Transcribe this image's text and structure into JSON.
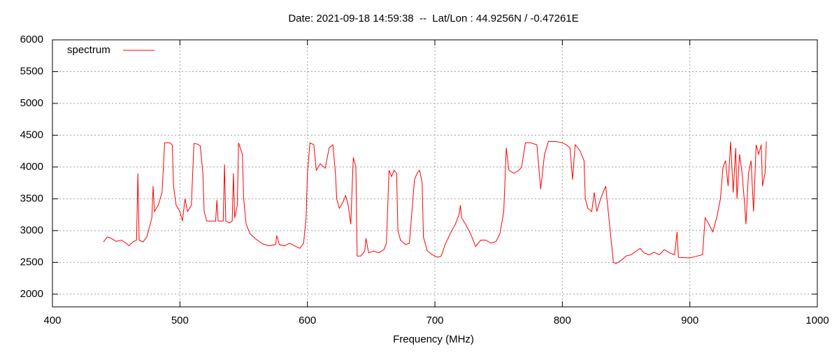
{
  "chart_data": {
    "type": "line",
    "title": "Date: 2021-09-18 14:59:38  --  Lat/Lon : 44.9256N / -0.47261E",
    "x_label": "Frequency (MHz)",
    "x": [
      440,
      443,
      446,
      450,
      454,
      458,
      460,
      463,
      466,
      467,
      468,
      471,
      474,
      476,
      478,
      479,
      480,
      483,
      486,
      488,
      492,
      494,
      495,
      497,
      500,
      502,
      504,
      506,
      509,
      511,
      514,
      516,
      518,
      519,
      521,
      525,
      528,
      529,
      530,
      534,
      535,
      536,
      539,
      541,
      542,
      543,
      545,
      546,
      549,
      550,
      552,
      555,
      560,
      565,
      570,
      575,
      576,
      578,
      582,
      586,
      590,
      594,
      597,
      599,
      600,
      602,
      605,
      607,
      610,
      614,
      617,
      620,
      622,
      623,
      625,
      628,
      630,
      632,
      634,
      636,
      638,
      639,
      642,
      645,
      646,
      648,
      652,
      656,
      660,
      662,
      664,
      666,
      668,
      670,
      671,
      673,
      677,
      680,
      682,
      684,
      686,
      688,
      690,
      691,
      694,
      698,
      702,
      705,
      708,
      712,
      716,
      719,
      720,
      721,
      724,
      728,
      732,
      736,
      740,
      744,
      748,
      751,
      754,
      756,
      758,
      762,
      766,
      768,
      771,
      775,
      780,
      783,
      786,
      789,
      795,
      800,
      803,
      806,
      808,
      810,
      814,
      817,
      818,
      820,
      823,
      825,
      827,
      830,
      834,
      836,
      840,
      842,
      846,
      850,
      854,
      858,
      861,
      864,
      868,
      872,
      876,
      880,
      884,
      888,
      890,
      891,
      900,
      906,
      910,
      912,
      915,
      918,
      921,
      924,
      926,
      928,
      930,
      932,
      934,
      936,
      937,
      939,
      941,
      943,
      944,
      946,
      948,
      950,
      952,
      954,
      956,
      957,
      959,
      960
    ],
    "series": [
      {
        "name": "spectrum",
        "color": "#ff0000",
        "values": [
          2820,
          2900,
          2880,
          2830,
          2850,
          2800,
          2760,
          2820,
          2850,
          3900,
          2850,
          2820,
          2900,
          3050,
          3200,
          3700,
          3300,
          3400,
          3600,
          4380,
          4380,
          4350,
          3700,
          3400,
          3300,
          3150,
          3500,
          3300,
          3400,
          4370,
          4360,
          4330,
          3900,
          3300,
          3150,
          3150,
          3150,
          3480,
          3150,
          3150,
          4040,
          3150,
          3120,
          3150,
          3900,
          3200,
          3400,
          4380,
          4200,
          3500,
          3100,
          2950,
          2860,
          2790,
          2760,
          2780,
          2920,
          2780,
          2760,
          2800,
          2760,
          2720,
          2800,
          3200,
          3900,
          4380,
          4350,
          3950,
          4050,
          3980,
          4300,
          4350,
          3900,
          3500,
          3350,
          3450,
          3550,
          3400,
          3100,
          4150,
          4000,
          2600,
          2600,
          2680,
          2880,
          2650,
          2680,
          2650,
          2700,
          2800,
          3950,
          3850,
          3950,
          3900,
          3000,
          2850,
          2780,
          2800,
          3300,
          3800,
          3900,
          3950,
          3750,
          2900,
          2680,
          2620,
          2580,
          2600,
          2780,
          2950,
          3100,
          3250,
          3400,
          3200,
          3100,
          2950,
          2750,
          2850,
          2850,
          2800,
          2830,
          2950,
          3300,
          4300,
          3950,
          3900,
          3950,
          4000,
          4380,
          4380,
          4350,
          3650,
          4200,
          4400,
          4400,
          4380,
          4350,
          4300,
          3800,
          4350,
          4250,
          4100,
          3500,
          3350,
          3300,
          3600,
          3300,
          3500,
          3700,
          3300,
          2500,
          2480,
          2530,
          2600,
          2620,
          2680,
          2720,
          2650,
          2620,
          2660,
          2620,
          2700,
          2650,
          2620,
          2980,
          2580,
          2570,
          2600,
          2620,
          3200,
          3100,
          2980,
          3200,
          3500,
          4000,
          4100,
          3700,
          4400,
          3600,
          4300,
          3500,
          4200,
          3900,
          3400,
          3100,
          3900,
          4100,
          3300,
          4350,
          4200,
          4350,
          3700,
          3900,
          4400
        ]
      }
    ],
    "xlim": [
      400,
      1000
    ],
    "xticks": [
      400,
      500,
      600,
      700,
      800,
      900,
      1000
    ],
    "ylim": [
      1800,
      6000
    ],
    "yticks": [
      2000,
      2500,
      3000,
      3500,
      4000,
      4500,
      5000,
      5500,
      6000
    ],
    "grid": true,
    "legend": "top-left"
  }
}
